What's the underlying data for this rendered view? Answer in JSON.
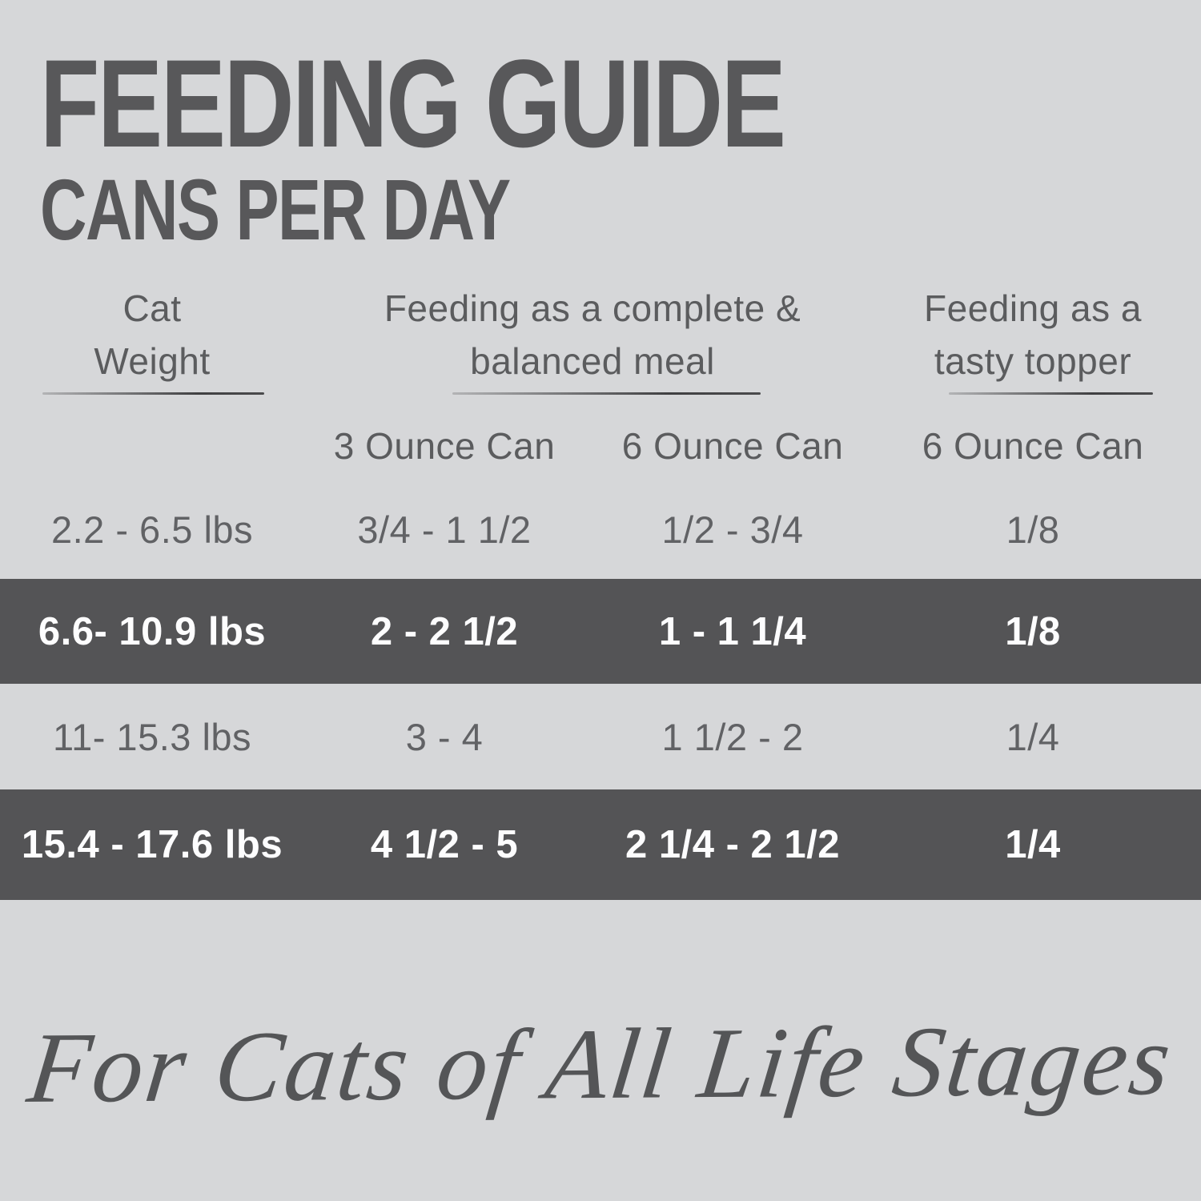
{
  "colors": {
    "page_background": "#d6d7d9",
    "heading_text": "#58585a",
    "body_text": "#5b5c5e",
    "highlight_band_background": "#545456",
    "highlight_band_text": "#fdfdfe",
    "underline": "#4a4a4c"
  },
  "header": {
    "title": "FEEDING GUIDE",
    "subtitle": "CANS PER DAY"
  },
  "table": {
    "groups": [
      {
        "line1": "Cat",
        "line2": "Weight"
      },
      {
        "line1": "Feeding as a complete &",
        "line2": "balanced meal"
      },
      {
        "line1": "Feeding as a",
        "line2": "tasty topper"
      }
    ],
    "can_headers": [
      "3 Ounce Can",
      "6 Ounce Can",
      "6 Ounce Can"
    ],
    "rows": [
      {
        "weight": "2.2 - 6.5 lbs",
        "complete_3oz": "3/4 - 1 1/2",
        "complete_6oz": "1/2 - 3/4",
        "topper_6oz": "1/8",
        "highlighted": false
      },
      {
        "weight": "6.6- 10.9 lbs",
        "complete_3oz": "2 - 2 1/2",
        "complete_6oz": "1 - 1 1/4",
        "topper_6oz": "1/8",
        "highlighted": true
      },
      {
        "weight": "11- 15.3 lbs",
        "complete_3oz": "3 - 4",
        "complete_6oz": "1 1/2 - 2",
        "topper_6oz": "1/4",
        "highlighted": false
      },
      {
        "weight": "15.4 - 17.6 lbs",
        "complete_3oz": "4 1/2 - 5",
        "complete_6oz": "2 1/4 - 2 1/2",
        "topper_6oz": "1/4",
        "highlighted": true
      }
    ]
  },
  "footer": {
    "tagline": "For Cats of All Life Stages"
  }
}
